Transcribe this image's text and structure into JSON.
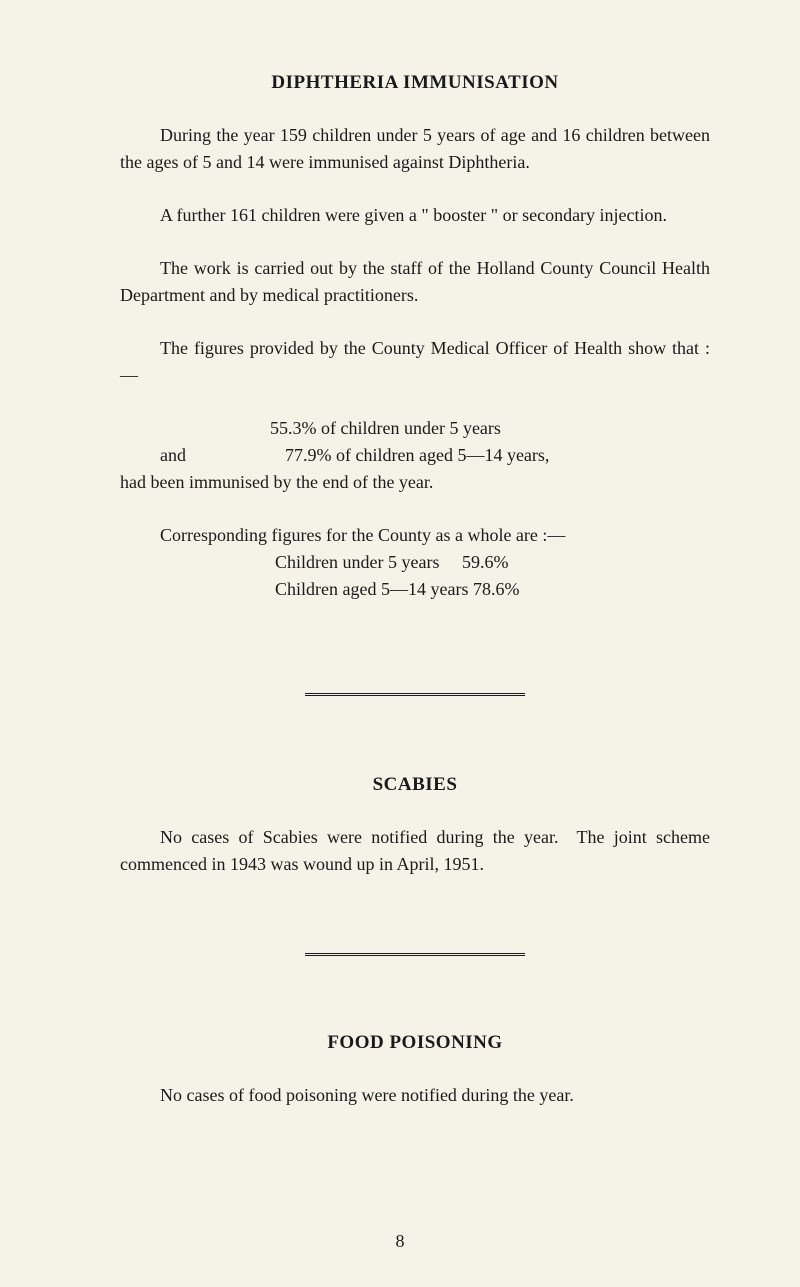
{
  "section1": {
    "heading": "DIPHTHERIA IMMUNISATION",
    "p1": "During the year 159 children under 5 years of age and 16 children between the ages of 5 and 14 were immunised against Diphtheria.",
    "p2": "A further 161 children were given a \" booster \" or secondary injection.",
    "p3": "The work is carried out by the staff of the Holland County Council Health Department and by medical practitioners.",
    "p4": "The figures provided by the County Medical Officer of Health show that :—",
    "stat1": "55.3% of children under 5 years",
    "and_label": "and",
    "stat2": "77.9% of children aged 5—14 years,",
    "stat_close": "had been immunised by the end of the year.",
    "county_intro": "Corresponding figures for the County as a whole are :—",
    "county1": "Children under 5 years  59.6%",
    "county2": "Children aged 5—14 years 78.6%"
  },
  "section2": {
    "heading": "SCABIES",
    "p1": "No cases of Scabies were notified during the year. The joint scheme commenced in 1943 was wound up in April, 1951."
  },
  "section3": {
    "heading": "FOOD POISONING",
    "p1": "No cases of food poisoning were notified during the year."
  },
  "page_number": "8"
}
